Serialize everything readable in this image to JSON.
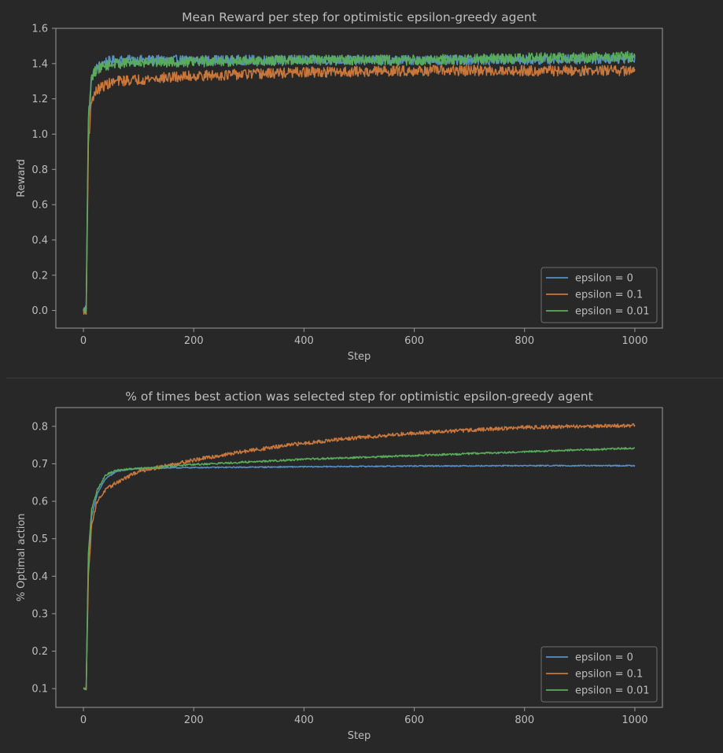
{
  "chart_data": [
    {
      "type": "line",
      "title": "Mean Reward per step for optimistic epsilon-greedy agent",
      "xlabel": "Step",
      "ylabel": "Reward",
      "xlim": [
        -50,
        1050
      ],
      "ylim": [
        -0.1,
        1.6
      ],
      "xticks": [
        0,
        200,
        400,
        600,
        800,
        1000
      ],
      "xtick_labels": [
        "0",
        "200",
        "400",
        "600",
        "800",
        "1000"
      ],
      "yticks": [
        0.0,
        0.2,
        0.4,
        0.6,
        0.8,
        1.0,
        1.2,
        1.4,
        1.6
      ],
      "ytick_labels": [
        "0.0",
        "0.2",
        "0.4",
        "0.6",
        "0.8",
        "1.0",
        "1.2",
        "1.4",
        "1.6"
      ],
      "grid": false,
      "legend_position": "lower-right",
      "series": [
        {
          "name": "epsilon = 0",
          "color": "#5a8fc4",
          "x": [
            0,
            5,
            9,
            15,
            25,
            40,
            60,
            100,
            200,
            400,
            600,
            800,
            1000
          ],
          "values": [
            0.0,
            0.02,
            1.05,
            1.32,
            1.38,
            1.41,
            1.42,
            1.42,
            1.42,
            1.42,
            1.42,
            1.42,
            1.43
          ],
          "noise": 0.028
        },
        {
          "name": "epsilon = 0.1",
          "color": "#c9773b",
          "x": [
            0,
            5,
            9,
            15,
            25,
            40,
            60,
            100,
            150,
            200,
            300,
            400,
            600,
            800,
            1000
          ],
          "values": [
            0.0,
            -0.02,
            0.95,
            1.2,
            1.25,
            1.28,
            1.3,
            1.31,
            1.32,
            1.33,
            1.34,
            1.35,
            1.36,
            1.36,
            1.36
          ],
          "noise": 0.03
        },
        {
          "name": "epsilon = 0.01",
          "color": "#59ac5b",
          "x": [
            0,
            5,
            9,
            15,
            25,
            40,
            60,
            100,
            200,
            400,
            600,
            800,
            1000
          ],
          "values": [
            0.0,
            0.0,
            1.1,
            1.33,
            1.37,
            1.39,
            1.4,
            1.41,
            1.41,
            1.42,
            1.42,
            1.43,
            1.44
          ],
          "noise": 0.03
        }
      ]
    },
    {
      "type": "line",
      "title": "% of times best action was selected step for optimistic epsilon-greedy agent",
      "xlabel": "Step",
      "ylabel": "% Optimal action",
      "xlim": [
        -50,
        1050
      ],
      "ylim": [
        0.05,
        0.85
      ],
      "xticks": [
        0,
        200,
        400,
        600,
        800,
        1000
      ],
      "xtick_labels": [
        "0",
        "200",
        "400",
        "600",
        "800",
        "1000"
      ],
      "yticks": [
        0.1,
        0.2,
        0.3,
        0.4,
        0.5,
        0.6,
        0.7,
        0.8
      ],
      "ytick_labels": [
        "0.1",
        "0.2",
        "0.3",
        "0.4",
        "0.5",
        "0.6",
        "0.7",
        "0.8"
      ],
      "grid": false,
      "legend_position": "lower-right",
      "series": [
        {
          "name": "epsilon = 0",
          "color": "#5a8fc4",
          "x": [
            0,
            5,
            9,
            15,
            25,
            40,
            60,
            100,
            200,
            400,
            600,
            800,
            1000
          ],
          "values": [
            0.1,
            0.1,
            0.45,
            0.56,
            0.62,
            0.66,
            0.68,
            0.688,
            0.69,
            0.692,
            0.694,
            0.695,
            0.695
          ],
          "noise": 0.0015
        },
        {
          "name": "epsilon = 0.1",
          "color": "#c9773b",
          "x": [
            0,
            5,
            9,
            15,
            25,
            40,
            60,
            100,
            150,
            200,
            300,
            400,
            500,
            600,
            700,
            800,
            900,
            1000
          ],
          "values": [
            0.1,
            0.1,
            0.4,
            0.54,
            0.6,
            0.63,
            0.65,
            0.68,
            0.695,
            0.71,
            0.735,
            0.755,
            0.77,
            0.782,
            0.79,
            0.797,
            0.8,
            0.802
          ],
          "noise": 0.005
        },
        {
          "name": "epsilon = 0.01",
          "color": "#59ac5b",
          "x": [
            0,
            5,
            9,
            15,
            25,
            40,
            60,
            100,
            200,
            300,
            400,
            600,
            800,
            1000
          ],
          "values": [
            0.1,
            0.1,
            0.46,
            0.58,
            0.63,
            0.67,
            0.683,
            0.688,
            0.698,
            0.705,
            0.712,
            0.722,
            0.732,
            0.742
          ],
          "noise": 0.0025
        }
      ]
    }
  ]
}
